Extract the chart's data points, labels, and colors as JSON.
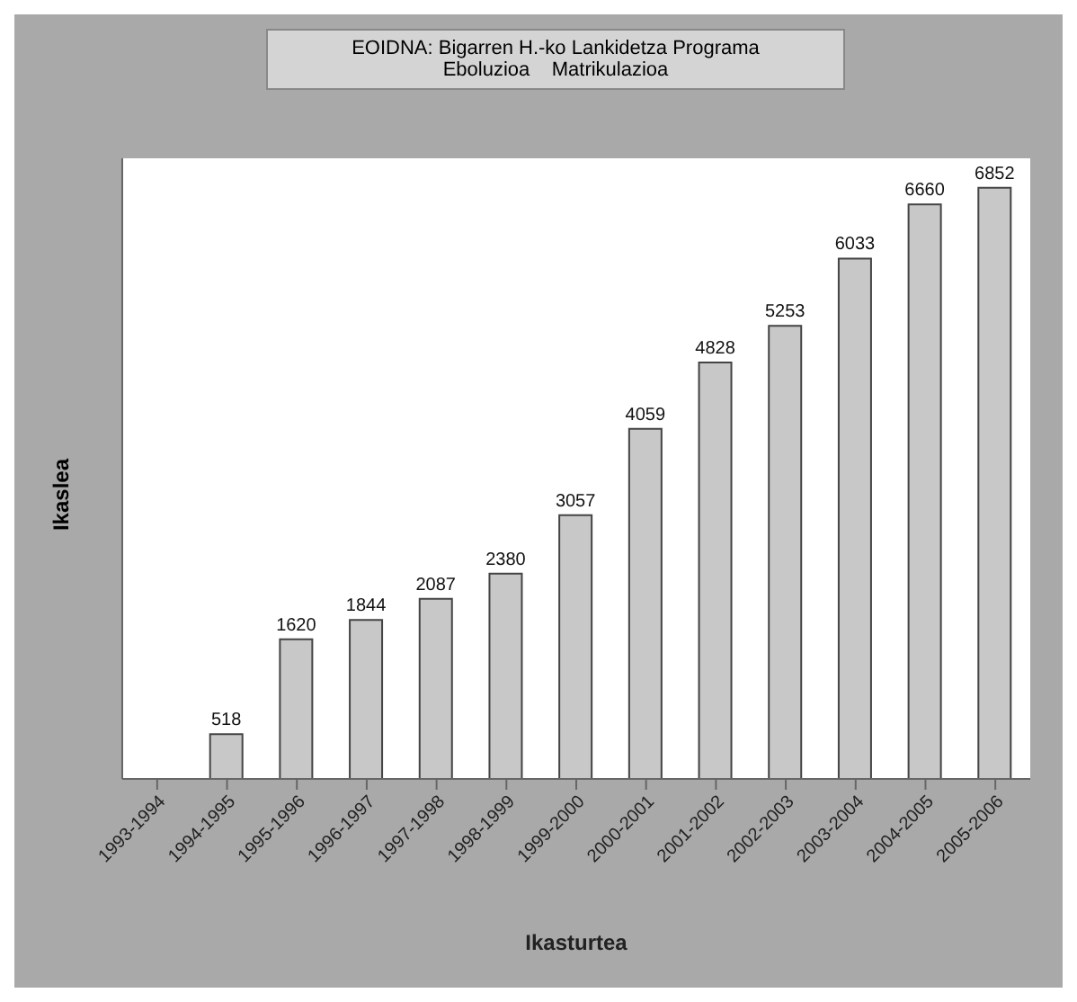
{
  "chart_data": {
    "type": "bar",
    "title": "EOIDNA: Bigarren H.-ko Lankidetza Programa",
    "subtitle": "Eboluzioa    Matrikulazioa",
    "xlabel": "Ikasturtea",
    "ylabel": "Ikaslea",
    "categories": [
      "1993-1994",
      "1994-1995",
      "1995-1996",
      "1996-1997",
      "1997-1998",
      "1998-1999",
      "1999-2000",
      "2000-2001",
      "2001-2002",
      "2002-2003",
      "2003-2004",
      "2004-2005",
      "2005-2006"
    ],
    "values": [
      null,
      518,
      1620,
      1844,
      2087,
      2380,
      3057,
      4059,
      4828,
      5253,
      6033,
      6660,
      6852
    ],
    "color": "#c8c8c8",
    "data_labels": true,
    "tick_labels": "x"
  }
}
